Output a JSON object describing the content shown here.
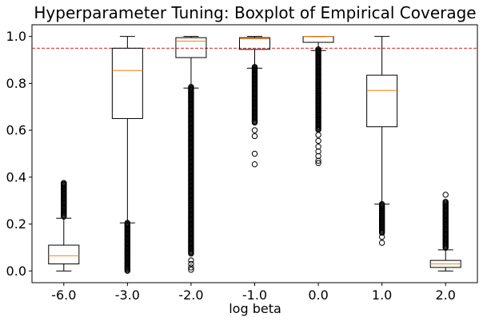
{
  "chart_data": {
    "type": "boxplot",
    "title": "Hyperparameter Tuning: Boxplot of Empirical Coverage",
    "xlabel": "log beta",
    "ylabel": "",
    "categories": [
      "-6.0",
      "-3.0",
      "-2.0",
      "-1.0",
      "0.0",
      "1.0",
      "2.0"
    ],
    "ylim": [
      -0.05,
      1.05
    ],
    "yticks": [
      "0.0",
      "0.2",
      "0.4",
      "0.6",
      "0.8",
      "1.0"
    ],
    "reference_line": {
      "y": 0.95,
      "color": "#d62728",
      "style": "dashed"
    },
    "box_color": "#000000",
    "median_color": "#ff7f0e",
    "boxes": [
      {
        "label": "-6.0",
        "whisker_low": 0.0,
        "q1": 0.03,
        "median": 0.065,
        "q3": 0.11,
        "whisker_high": 0.225,
        "outlier_range": [
          0.23,
          0.375
        ],
        "outliers": [
          0.375
        ]
      },
      {
        "label": "-3.0",
        "whisker_low": 0.205,
        "q1": 0.65,
        "median": 0.855,
        "q3": 0.95,
        "whisker_high": 1.0,
        "outlier_range": [
          0.0,
          0.205
        ],
        "outliers": []
      },
      {
        "label": "-2.0",
        "whisker_low": 0.78,
        "q1": 0.91,
        "median": 0.98,
        "q3": 0.995,
        "whisker_high": 1.0,
        "outlier_range": [
          0.07,
          0.785
        ],
        "outliers": [
          0.045,
          0.03,
          0.015,
          0.005
        ]
      },
      {
        "label": "-1.0",
        "whisker_low": 0.865,
        "q1": 0.945,
        "median": 0.99,
        "q3": 0.995,
        "whisker_high": 1.0,
        "outlier_range": [
          0.63,
          0.87
        ],
        "outliers": [
          0.6,
          0.575,
          0.5,
          0.455
        ]
      },
      {
        "label": "0.0",
        "whisker_low": 0.94,
        "q1": 0.975,
        "median": 1.0,
        "q3": 1.0,
        "whisker_high": 1.0,
        "outlier_range": [
          0.6,
          0.945
        ],
        "outliers": [
          0.58,
          0.555,
          0.53,
          0.51,
          0.49,
          0.47,
          0.46
        ]
      },
      {
        "label": "1.0",
        "whisker_low": 0.285,
        "q1": 0.615,
        "median": 0.77,
        "q3": 0.835,
        "whisker_high": 1.0,
        "outlier_range": [
          0.16,
          0.285
        ],
        "outliers": [
          0.145,
          0.12
        ]
      },
      {
        "label": "2.0",
        "whisker_low": 0.0,
        "q1": 0.015,
        "median": 0.03,
        "q3": 0.045,
        "whisker_high": 0.09,
        "outlier_range": [
          0.095,
          0.295
        ],
        "outliers": [
          0.325
        ]
      }
    ]
  }
}
